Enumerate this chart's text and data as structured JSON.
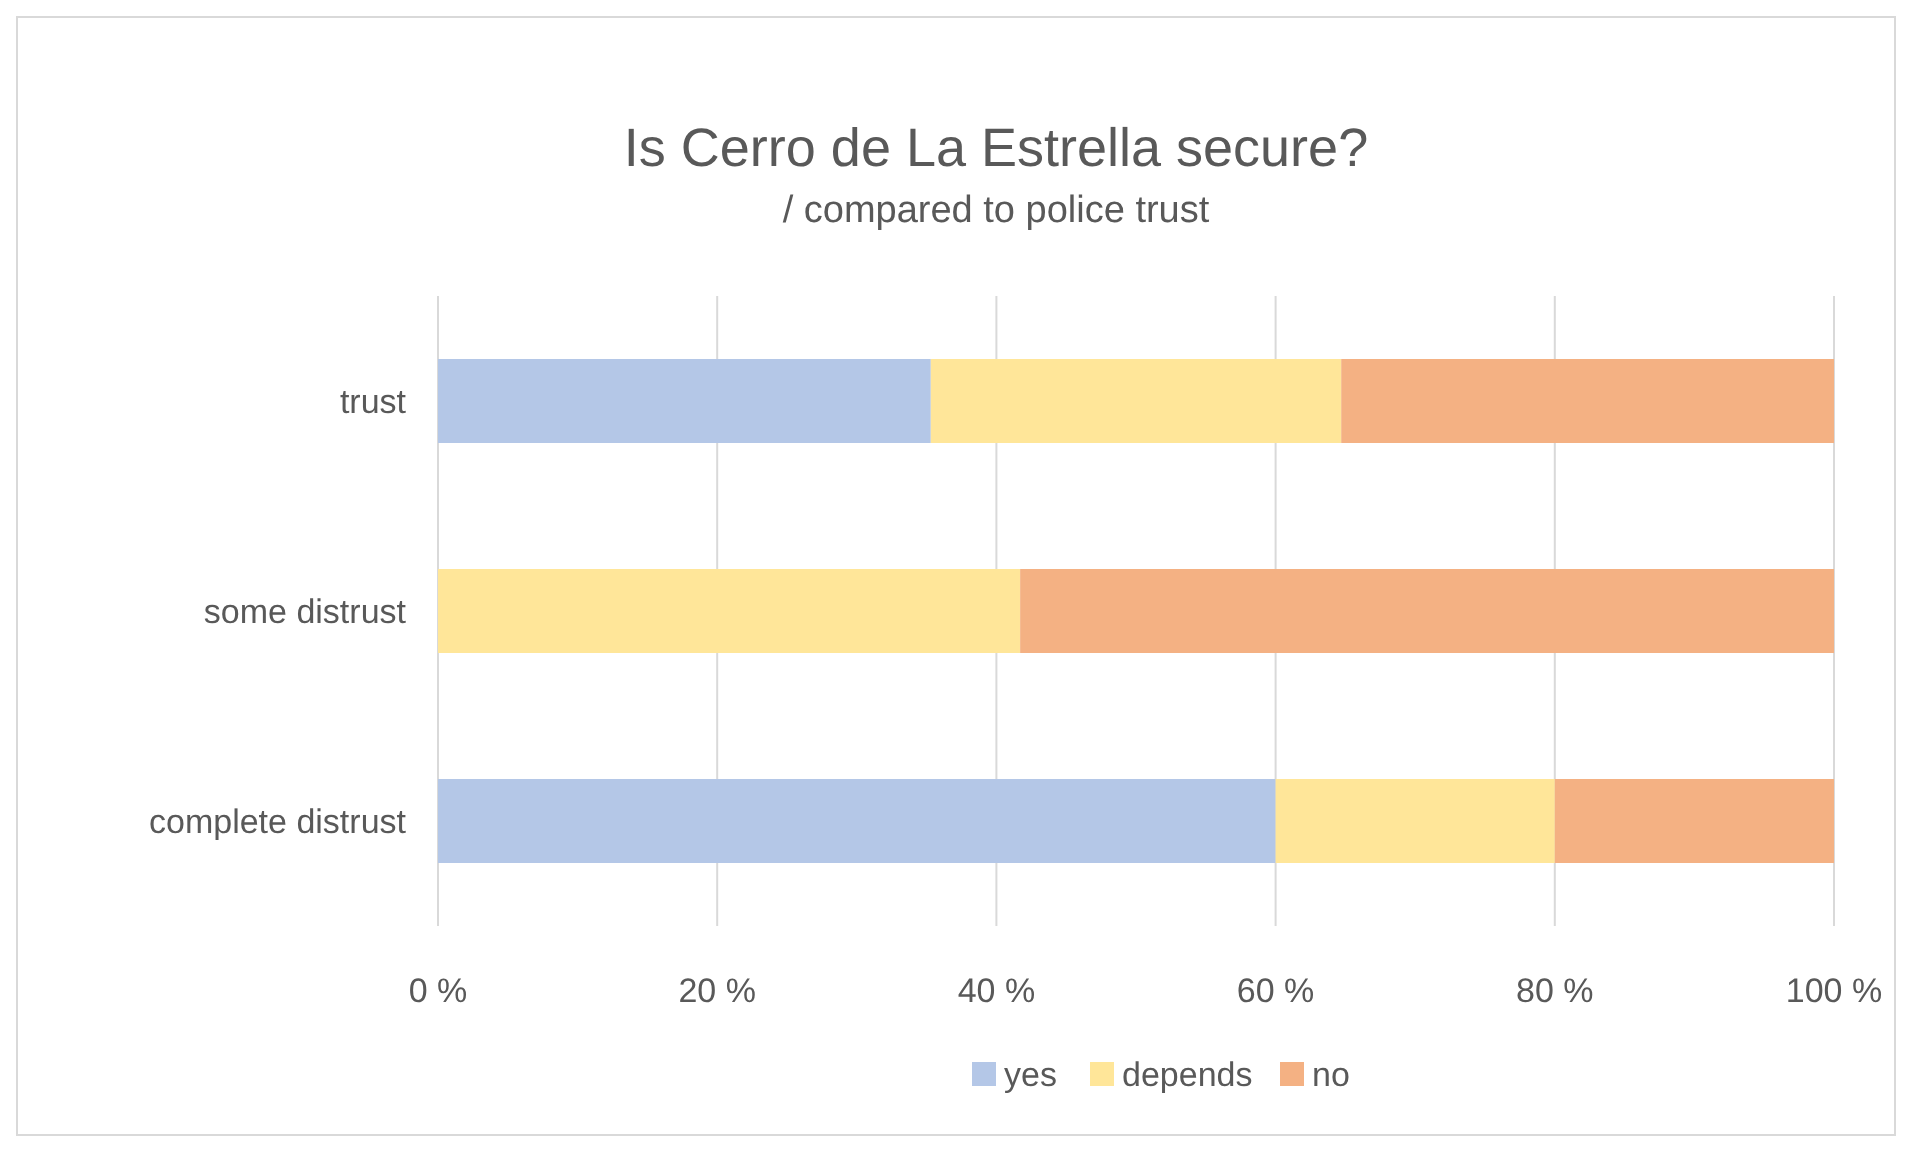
{
  "chart_data": {
    "type": "bar",
    "orientation": "horizontal",
    "stacked": true,
    "title": "Is Cerro de La Estrella secure?",
    "subtitle": "/ compared to police trust",
    "categories": [
      "trust",
      "some distrust",
      "complete distrust"
    ],
    "series": [
      {
        "name": "yes",
        "color": "#b4c7e7",
        "values": [
          35.3,
          0,
          60
        ]
      },
      {
        "name": "depends",
        "color": "#ffe699",
        "values": [
          29.4,
          41.7,
          20
        ]
      },
      {
        "name": "no",
        "color": "#f4b183",
        "values": [
          35.3,
          58.3,
          20
        ]
      }
    ],
    "xlim": [
      0,
      100
    ],
    "xticks": [
      {
        "value": 0,
        "label": "0 %"
      },
      {
        "value": 20,
        "label": "20 %"
      },
      {
        "value": 40,
        "label": "40 %"
      },
      {
        "value": 60,
        "label": "60 %"
      },
      {
        "value": 80,
        "label": "80 %"
      },
      {
        "value": 100,
        "label": "100 %"
      }
    ],
    "grid": "x",
    "legend": "bottom"
  }
}
